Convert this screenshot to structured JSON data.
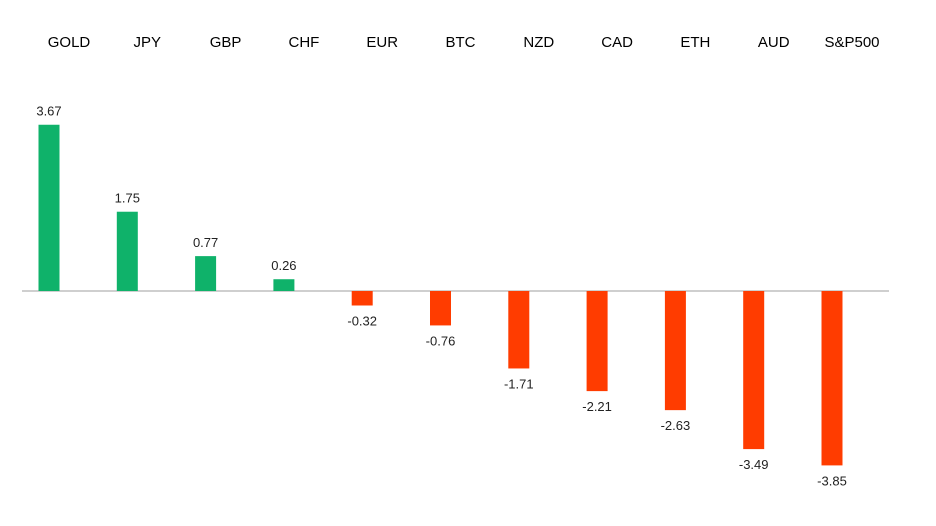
{
  "chart_data": {
    "type": "bar",
    "title": "",
    "xlabel": "",
    "ylabel": "",
    "categories": [
      "GOLD",
      "JPY",
      "GBP",
      "CHF",
      "EUR",
      "BTC",
      "NZD",
      "CAD",
      "ETH",
      "AUD",
      "S&P500"
    ],
    "values": [
      3.67,
      1.75,
      0.77,
      0.26,
      -0.32,
      -0.76,
      -1.71,
      -2.21,
      -2.63,
      -3.49,
      -3.85
    ],
    "value_labels": [
      "3.67",
      "1.75",
      "0.77",
      "0.26",
      "-0.32",
      "-0.76",
      "-1.71",
      "-2.21",
      "-2.63",
      "-3.49",
      "-3.85"
    ],
    "ylim": [
      -3.85,
      3.67
    ],
    "grid": false,
    "legend": "none",
    "category_axis_position": "top",
    "colors": {
      "positive": "#0fb26a",
      "negative": "#ff3c00",
      "axis": "#bfbfbf"
    }
  }
}
